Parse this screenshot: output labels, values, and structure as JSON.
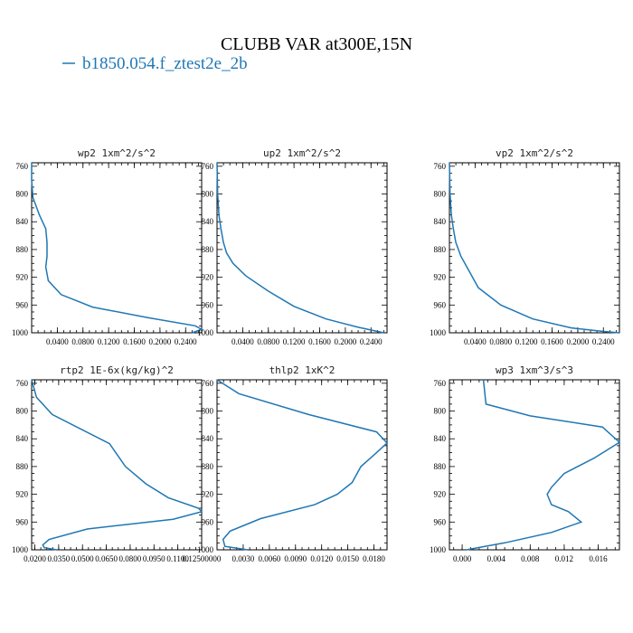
{
  "figure": {
    "title": "CLUBB VAR at300E,15N",
    "legend_label": "b1850.054.f_ztest2e_2b",
    "line_color": "#1f77b4"
  },
  "chart_data": [
    {
      "type": "line",
      "title": "wp2  1xm^2/s^2",
      "series_name": "b1850.054.f_ztest2e_2b",
      "xlim": [
        0.0,
        0.265
      ],
      "ylim": [
        1000,
        755
      ],
      "y_ticks": [
        760,
        800,
        840,
        880,
        920,
        960,
        1000
      ],
      "x_ticks": [
        0.04,
        0.08,
        0.12,
        0.16,
        0.2,
        0.24
      ],
      "x_tick_labels": [
        "0.0400",
        "0.0800",
        "0.1200",
        "0.1600",
        "0.2000",
        "0.2400"
      ],
      "x": [
        0.0,
        0.0,
        0.002,
        0.012,
        0.022,
        0.024,
        0.024,
        0.022,
        0.026,
        0.046,
        0.095,
        0.18,
        0.255,
        0.265,
        0.25
      ],
      "y": [
        755,
        780,
        805,
        830,
        850,
        870,
        890,
        905,
        925,
        945,
        963,
        978,
        990,
        995,
        1000
      ]
    },
    {
      "type": "line",
      "title": "up2  1xm^2/s^2",
      "series_name": "b1850.054.f_ztest2e_2b",
      "xlim": [
        0.0,
        0.265
      ],
      "ylim": [
        1000,
        755
      ],
      "y_ticks": [
        760,
        800,
        840,
        880,
        920,
        960,
        1000
      ],
      "x_ticks": [
        0.04,
        0.08,
        0.12,
        0.16,
        0.2,
        0.24
      ],
      "x_tick_labels": [
        "0.0400",
        "0.0800",
        "0.1200",
        "0.1600",
        "0.2000",
        "0.2400"
      ],
      "x": [
        0.0,
        0.001,
        0.003,
        0.006,
        0.01,
        0.015,
        0.025,
        0.045,
        0.08,
        0.12,
        0.17,
        0.22,
        0.26
      ],
      "y": [
        755,
        800,
        830,
        850,
        870,
        885,
        900,
        918,
        940,
        962,
        980,
        992,
        1000
      ]
    },
    {
      "type": "line",
      "title": "vp2  1xm^2/s^2",
      "series_name": "b1850.054.f_ztest2e_2b",
      "xlim": [
        0.0,
        0.265
      ],
      "ylim": [
        1000,
        755
      ],
      "y_ticks": [
        760,
        800,
        840,
        880,
        920,
        960,
        1000
      ],
      "x_ticks": [
        0.04,
        0.08,
        0.12,
        0.16,
        0.2,
        0.24
      ],
      "x_tick_labels": [
        "0.0400",
        "0.0800",
        "0.1200",
        "0.1600",
        "0.2000",
        "0.2400"
      ],
      "x": [
        0.0,
        0.001,
        0.003,
        0.006,
        0.01,
        0.018,
        0.03,
        0.045,
        0.08,
        0.13,
        0.19,
        0.24,
        0.265
      ],
      "y": [
        755,
        800,
        830,
        850,
        870,
        890,
        910,
        935,
        960,
        980,
        993,
        998,
        1000
      ]
    },
    {
      "type": "line",
      "title": "rtp2  1E-6x(kg/kg)^2",
      "series_name": "b1850.054.f_ztest2e_2b",
      "xlim": [
        0.018,
        0.125
      ],
      "ylim": [
        1000,
        755
      ],
      "y_ticks": [
        760,
        800,
        840,
        880,
        920,
        960,
        1000
      ],
      "x_ticks": [
        0.02,
        0.035,
        0.05,
        0.065,
        0.08,
        0.095,
        0.11,
        0.125
      ],
      "x_tick_labels": [
        "0.0200",
        "0.0350",
        "0.0500",
        "0.0650",
        "0.0800",
        "0.0950",
        "0.1100",
        "0.12500000"
      ],
      "x": [
        0.018,
        0.021,
        0.031,
        0.067,
        0.077,
        0.09,
        0.104,
        0.123,
        0.125,
        0.107,
        0.053,
        0.029,
        0.025,
        0.026,
        0.034
      ],
      "y": [
        755,
        780,
        805,
        847,
        880,
        905,
        925,
        940,
        945,
        956,
        970,
        985,
        993,
        997,
        1000
      ]
    },
    {
      "type": "line",
      "title": "thlp2  1xK^2",
      "series_name": "b1850.054.f_ztest2e_2b",
      "xlim": [
        0.0,
        0.0195
      ],
      "ylim": [
        1000,
        755
      ],
      "y_ticks": [
        760,
        800,
        840,
        880,
        920,
        960,
        1000
      ],
      "x_ticks": [
        0.003,
        0.006,
        0.009,
        0.012,
        0.015,
        0.018
      ],
      "x_tick_labels": [
        "0.0030",
        "0.0060",
        "0.0090",
        "0.0120",
        "0.0150",
        "0.0180"
      ],
      "x": [
        0.0,
        0.0025,
        0.0105,
        0.0183,
        0.0195,
        0.0183,
        0.0165,
        0.0155,
        0.0138,
        0.0112,
        0.005,
        0.0015,
        0.0007,
        0.0009,
        0.0035
      ],
      "y": [
        755,
        775,
        805,
        830,
        846,
        860,
        880,
        903,
        920,
        935,
        955,
        973,
        985,
        995,
        1000
      ]
    },
    {
      "type": "line",
      "title": "wp3  1xm^3/s^3",
      "series_name": "b1850.054.f_ztest2e_2b",
      "xlim": [
        -0.0015,
        0.0185
      ],
      "ylim": [
        1000,
        755
      ],
      "y_ticks": [
        760,
        800,
        840,
        880,
        920,
        960,
        1000
      ],
      "x_ticks": [
        0.0,
        0.004,
        0.008,
        0.012,
        0.016
      ],
      "x_tick_labels": [
        "0.000",
        "0.004",
        "0.008",
        "0.012",
        "0.016"
      ],
      "x": [
        0.0025,
        0.0028,
        0.008,
        0.0165,
        0.0185,
        0.0155,
        0.012,
        0.0105,
        0.01,
        0.0105,
        0.0125,
        0.014,
        0.0105,
        0.005,
        0.0005
      ],
      "y": [
        755,
        790,
        807,
        823,
        845,
        868,
        890,
        910,
        920,
        935,
        945,
        960,
        975,
        990,
        1000
      ]
    }
  ]
}
